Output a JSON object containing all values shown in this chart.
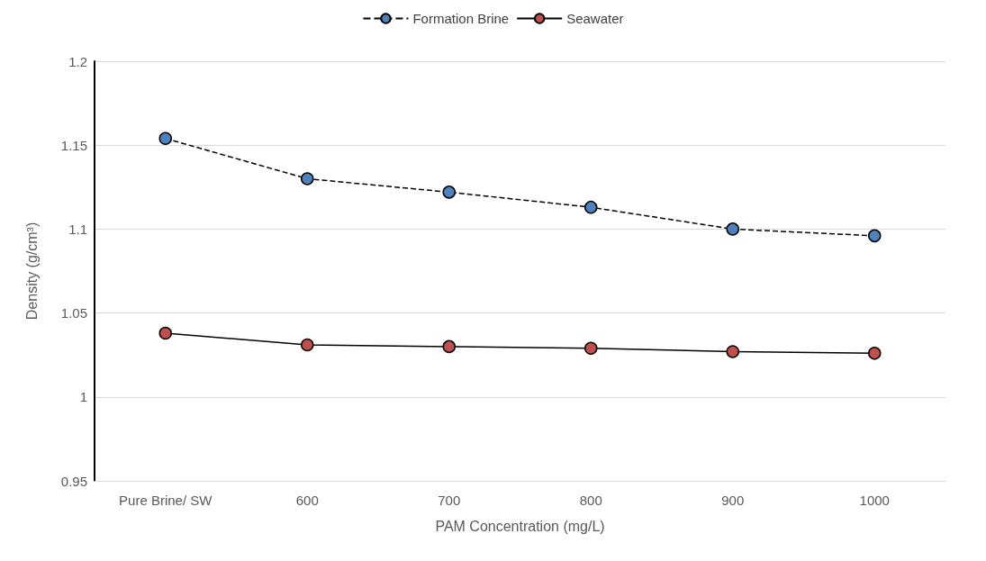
{
  "chart_data": {
    "type": "line",
    "xlabel": "PAM Concentration (mg/L)",
    "ylabel": "Density (g/cm³)",
    "categories": [
      "Pure Brine/ SW",
      "600",
      "700",
      "800",
      "900",
      "1000"
    ],
    "series": [
      {
        "name": "Formation Brine",
        "color": "#4f81bd",
        "line_style": "dashed",
        "values": [
          1.154,
          1.13,
          1.122,
          1.113,
          1.1,
          1.096
        ]
      },
      {
        "name": "Seawater",
        "color": "#c0504d",
        "line_style": "solid",
        "values": [
          1.038,
          1.031,
          1.03,
          1.029,
          1.027,
          1.026
        ]
      }
    ],
    "ylim": [
      0.95,
      1.2
    ],
    "yticks": [
      0.95,
      1,
      1.05,
      1.1,
      1.15,
      1.2
    ],
    "grid": "y",
    "legend": "top",
    "marker": "circle"
  }
}
